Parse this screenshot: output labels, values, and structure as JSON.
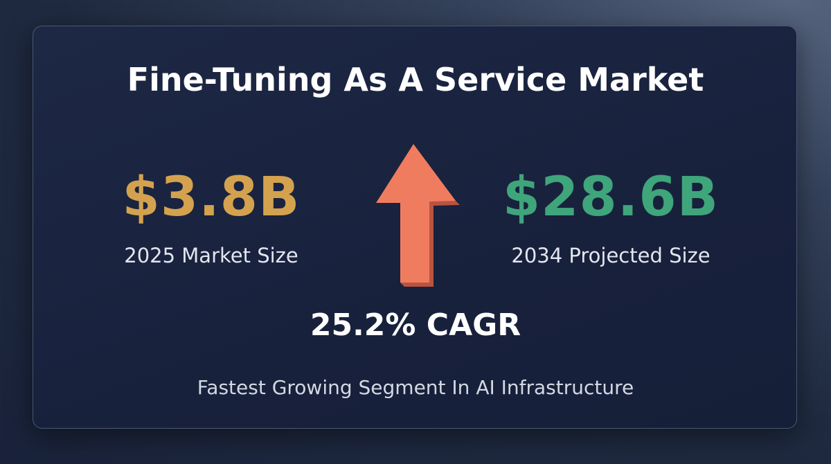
{
  "header": {
    "title": "Fine-Tuning As A Service Market"
  },
  "stats": [
    {
      "value": "$3.8B",
      "label": "2025 Market Size"
    },
    {
      "value": "$28.6B",
      "label": "2034 Projected Size"
    }
  ],
  "growth": {
    "value": "25.2% CAGR"
  },
  "footer": {
    "text": "Fastest Growing Segment In AI Infrastructure"
  }
}
